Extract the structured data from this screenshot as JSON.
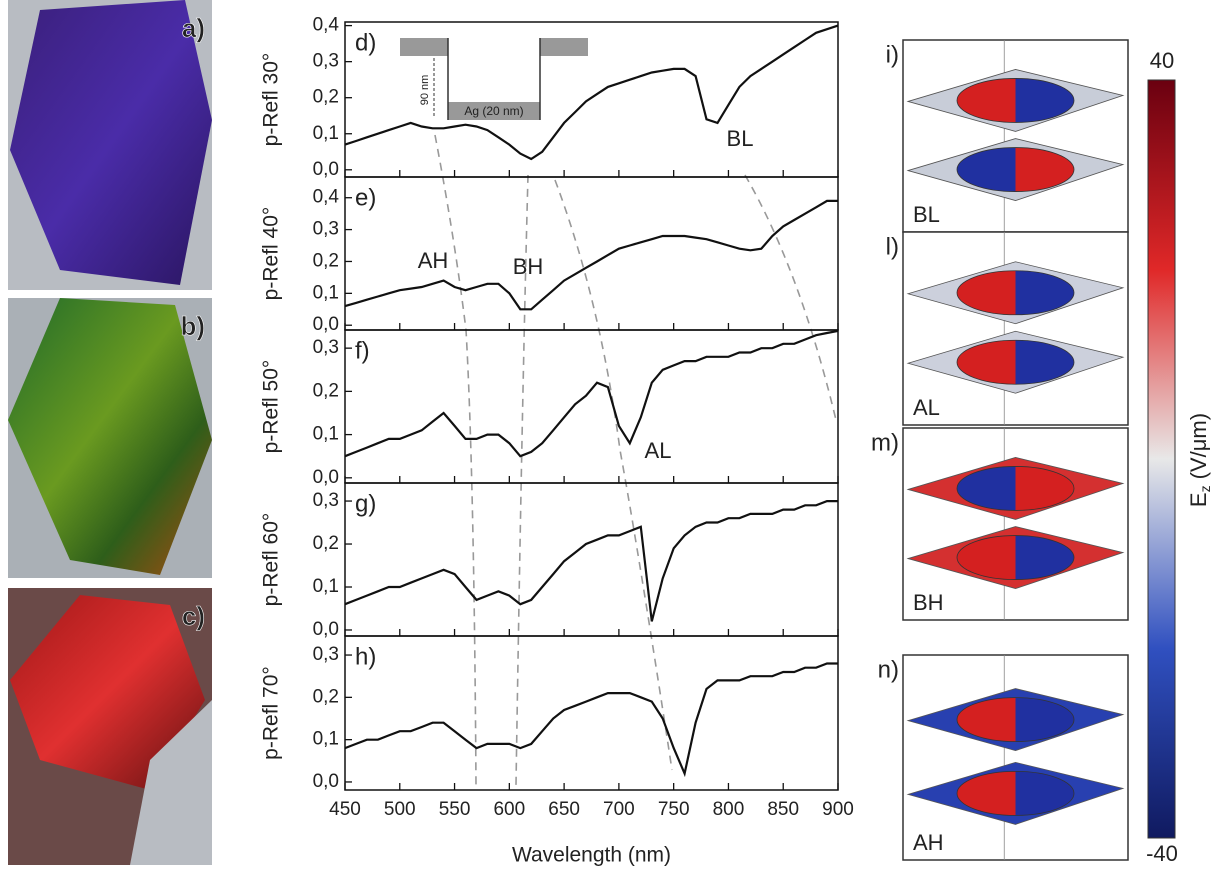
{
  "photos": [
    "a)",
    "b)",
    "c)"
  ],
  "chart_data": [
    {
      "type": "line",
      "label": "d)",
      "ylabel": "p-Refl 30°",
      "annotations": [
        "BL"
      ],
      "inset": {
        "depth": "90 nm",
        "layer": "Ag (20 nm)"
      },
      "xlim": [
        450,
        900
      ],
      "xticks": [
        450,
        500,
        550,
        600,
        650,
        700,
        750,
        800,
        850,
        900
      ],
      "ylim": [
        -0.02,
        0.41
      ],
      "yticks": [
        {
          "value": 0,
          "label": "0,0"
        },
        {
          "value": 0.1,
          "label": "0,1"
        },
        {
          "value": 0.2,
          "label": "0,2"
        },
        {
          "value": 0.3,
          "label": "0,3"
        },
        {
          "value": 0.4,
          "label": "0,4"
        }
      ],
      "x": [
        450,
        460,
        470,
        480,
        490,
        500,
        510,
        520,
        530,
        540,
        550,
        560,
        570,
        580,
        590,
        600,
        610,
        620,
        630,
        640,
        650,
        660,
        670,
        680,
        690,
        700,
        710,
        720,
        730,
        740,
        750,
        760,
        770,
        780,
        790,
        800,
        810,
        820,
        830,
        840,
        850,
        860,
        870,
        880,
        890,
        900
      ],
      "values": [
        0.07,
        0.08,
        0.09,
        0.1,
        0.11,
        0.12,
        0.13,
        0.12,
        0.115,
        0.115,
        0.12,
        0.125,
        0.12,
        0.11,
        0.09,
        0.07,
        0.045,
        0.03,
        0.05,
        0.09,
        0.13,
        0.16,
        0.19,
        0.21,
        0.23,
        0.24,
        0.25,
        0.26,
        0.27,
        0.275,
        0.28,
        0.28,
        0.26,
        0.14,
        0.13,
        0.18,
        0.23,
        0.26,
        0.28,
        0.3,
        0.32,
        0.34,
        0.36,
        0.38,
        0.39,
        0.4
      ],
      "color": "#111"
    },
    {
      "type": "line",
      "label": "e)",
      "ylabel": "p-Refl 40°",
      "annotations": [
        "AH",
        "BH"
      ],
      "xlim": [
        450,
        900
      ],
      "xticks": [
        450,
        500,
        550,
        600,
        650,
        700,
        750,
        800,
        850,
        900
      ],
      "ylim": [
        -0.015,
        0.465
      ],
      "yticks": [
        {
          "value": 0,
          "label": "0,0"
        },
        {
          "value": 0.1,
          "label": "0,1"
        },
        {
          "value": 0.2,
          "label": "0,2"
        },
        {
          "value": 0.3,
          "label": "0,3"
        },
        {
          "value": 0.4,
          "label": "0,4"
        }
      ],
      "x": [
        450,
        460,
        470,
        480,
        490,
        500,
        510,
        520,
        530,
        540,
        550,
        560,
        570,
        580,
        590,
        600,
        610,
        620,
        630,
        640,
        650,
        660,
        670,
        680,
        690,
        700,
        710,
        720,
        730,
        740,
        750,
        760,
        770,
        780,
        790,
        800,
        810,
        820,
        830,
        840,
        850,
        860,
        870,
        880,
        890,
        900
      ],
      "values": [
        0.06,
        0.07,
        0.08,
        0.09,
        0.1,
        0.11,
        0.115,
        0.12,
        0.13,
        0.14,
        0.12,
        0.11,
        0.12,
        0.13,
        0.13,
        0.1,
        0.05,
        0.05,
        0.08,
        0.11,
        0.14,
        0.16,
        0.18,
        0.2,
        0.22,
        0.24,
        0.25,
        0.26,
        0.27,
        0.28,
        0.28,
        0.28,
        0.275,
        0.27,
        0.26,
        0.25,
        0.24,
        0.235,
        0.24,
        0.28,
        0.31,
        0.33,
        0.35,
        0.37,
        0.39,
        0.39
      ],
      "color": "#111"
    },
    {
      "type": "line",
      "label": "f)",
      "ylabel": "p-Refl 50°",
      "annotations": [
        "AL"
      ],
      "xlim": [
        450,
        900
      ],
      "xticks": [
        450,
        500,
        550,
        600,
        650,
        700,
        750,
        800,
        850,
        900
      ],
      "ylim": [
        -0.012,
        0.342
      ],
      "yticks": [
        {
          "value": 0,
          "label": "0,0"
        },
        {
          "value": 0.1,
          "label": "0,1"
        },
        {
          "value": 0.2,
          "label": "0,2"
        },
        {
          "value": 0.3,
          "label": "0,3"
        }
      ],
      "x": [
        450,
        460,
        470,
        480,
        490,
        500,
        510,
        520,
        530,
        540,
        550,
        560,
        570,
        580,
        590,
        600,
        610,
        620,
        630,
        640,
        650,
        660,
        670,
        680,
        690,
        700,
        710,
        720,
        730,
        740,
        750,
        760,
        770,
        780,
        790,
        800,
        810,
        820,
        830,
        840,
        850,
        860,
        870,
        880,
        890,
        900
      ],
      "values": [
        0.05,
        0.06,
        0.07,
        0.08,
        0.09,
        0.09,
        0.1,
        0.11,
        0.13,
        0.15,
        0.12,
        0.09,
        0.09,
        0.1,
        0.1,
        0.08,
        0.05,
        0.06,
        0.08,
        0.11,
        0.14,
        0.17,
        0.19,
        0.22,
        0.21,
        0.12,
        0.08,
        0.14,
        0.22,
        0.25,
        0.26,
        0.27,
        0.27,
        0.28,
        0.28,
        0.28,
        0.29,
        0.29,
        0.3,
        0.3,
        0.31,
        0.31,
        0.32,
        0.33,
        0.335,
        0.34
      ],
      "color": "#111"
    },
    {
      "type": "line",
      "label": "g)",
      "ylabel": "p-Refl 60°",
      "annotations": [],
      "xlim": [
        450,
        900
      ],
      "xticks": [
        450,
        500,
        550,
        600,
        650,
        700,
        750,
        800,
        850,
        900
      ],
      "ylim": [
        -0.014,
        0.342
      ],
      "yticks": [
        {
          "value": 0,
          "label": "0,0"
        },
        {
          "value": 0.1,
          "label": "0,1"
        },
        {
          "value": 0.2,
          "label": "0,2"
        },
        {
          "value": 0.3,
          "label": "0,3"
        }
      ],
      "x": [
        450,
        460,
        470,
        480,
        490,
        500,
        510,
        520,
        530,
        540,
        550,
        560,
        570,
        580,
        590,
        600,
        610,
        620,
        630,
        640,
        650,
        660,
        670,
        680,
        690,
        700,
        710,
        720,
        730,
        740,
        750,
        760,
        770,
        780,
        790,
        800,
        810,
        820,
        830,
        840,
        850,
        860,
        870,
        880,
        890,
        900
      ],
      "values": [
        0.06,
        0.07,
        0.08,
        0.09,
        0.1,
        0.1,
        0.11,
        0.12,
        0.13,
        0.14,
        0.13,
        0.1,
        0.07,
        0.08,
        0.09,
        0.08,
        0.06,
        0.07,
        0.1,
        0.13,
        0.16,
        0.18,
        0.2,
        0.21,
        0.22,
        0.22,
        0.23,
        0.24,
        0.02,
        0.12,
        0.19,
        0.22,
        0.24,
        0.25,
        0.25,
        0.26,
        0.26,
        0.27,
        0.27,
        0.27,
        0.28,
        0.28,
        0.29,
        0.29,
        0.3,
        0.3
      ],
      "color": "#111"
    },
    {
      "type": "line",
      "label": "h)",
      "ylabel": "p-Refl 70°",
      "annotations": [],
      "xlabel": "Wavelength (nm)",
      "xlim": [
        450,
        900
      ],
      "xticks": [
        450,
        500,
        550,
        600,
        650,
        700,
        750,
        800,
        850,
        900
      ],
      "ylim": [
        -0.019,
        0.345
      ],
      "yticks": [
        {
          "value": 0,
          "label": "0,0"
        },
        {
          "value": 0.1,
          "label": "0,1"
        },
        {
          "value": 0.2,
          "label": "0,2"
        },
        {
          "value": 0.3,
          "label": "0,3"
        }
      ],
      "x": [
        450,
        460,
        470,
        480,
        490,
        500,
        510,
        520,
        530,
        540,
        550,
        560,
        570,
        580,
        590,
        600,
        610,
        620,
        630,
        640,
        650,
        660,
        670,
        680,
        690,
        700,
        710,
        720,
        730,
        740,
        750,
        760,
        770,
        780,
        790,
        800,
        810,
        820,
        830,
        840,
        850,
        860,
        870,
        880,
        890,
        900
      ],
      "values": [
        0.08,
        0.09,
        0.1,
        0.1,
        0.11,
        0.12,
        0.12,
        0.13,
        0.14,
        0.14,
        0.12,
        0.1,
        0.08,
        0.09,
        0.09,
        0.09,
        0.08,
        0.09,
        0.12,
        0.15,
        0.17,
        0.18,
        0.19,
        0.2,
        0.21,
        0.21,
        0.21,
        0.2,
        0.19,
        0.15,
        0.08,
        0.02,
        0.14,
        0.22,
        0.24,
        0.24,
        0.24,
        0.25,
        0.25,
        0.25,
        0.26,
        0.26,
        0.27,
        0.27,
        0.28,
        0.28
      ],
      "color": "#111"
    }
  ],
  "simulations": [
    {
      "label": "i)",
      "mode": "BL"
    },
    {
      "label": "l)",
      "mode": "AL"
    },
    {
      "label": "m)",
      "mode": "BH"
    },
    {
      "label": "n)",
      "mode": "AH"
    }
  ],
  "colorbar": {
    "clim": [
      -40,
      40
    ],
    "symbol": "E",
    "subscript": "z",
    "unit": "(V/μm)"
  }
}
